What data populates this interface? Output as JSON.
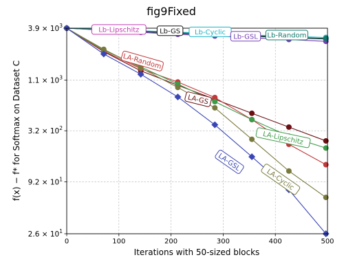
{
  "chart_data": {
    "type": "line",
    "title": "fig9Fixed",
    "xlabel": "Iterations with 50-sized blocks",
    "ylabel": "f(x) − f* for Softmax on Dataset C",
    "xlim": [
      0,
      500
    ],
    "ylim": [
      26,
      3900
    ],
    "yscale": "log",
    "grid": true,
    "xticks": [
      0,
      100,
      200,
      300,
      400,
      500
    ],
    "xtick_labels": [
      "0",
      "100",
      "200",
      "300",
      "400",
      "500"
    ],
    "yticks": [
      26,
      92,
      320,
      1100,
      3900
    ],
    "ytick_labels": [
      {
        "mant": "2.6",
        "exp": "1"
      },
      {
        "mant": "9.2",
        "exp": "1"
      },
      {
        "mant": "3.2",
        "exp": "2"
      },
      {
        "mant": "1.1",
        "exp": "3"
      },
      {
        "mant": "3.9",
        "exp": "3"
      }
    ],
    "series": [
      {
        "name": "Lb-Lipschitz",
        "color": "#c23bb0",
        "marker": "o",
        "x": [
          0,
          71,
          142,
          213,
          284,
          355,
          426,
          497
        ],
        "y": [
          3900,
          3770,
          3610,
          3470,
          3340,
          3230,
          3110,
          3010
        ]
      },
      {
        "name": "Lb-GS",
        "color": "#111111",
        "marker": "o",
        "x": [
          0,
          71,
          142,
          213,
          284,
          355,
          426,
          497
        ],
        "y": [
          3900,
          3740,
          3580,
          3440,
          3310,
          3200,
          3100,
          3000
        ]
      },
      {
        "name": "Lb-Cyclic",
        "color": "#19b2c4",
        "marker": "o",
        "x": [
          0,
          71,
          142,
          213,
          284,
          355,
          426,
          497
        ],
        "y": [
          3900,
          3780,
          3660,
          3540,
          3420,
          3300,
          3200,
          3110
        ]
      },
      {
        "name": "Lb-GSL",
        "color": "#7540b5",
        "marker": "o",
        "x": [
          0,
          71,
          142,
          213,
          284,
          355,
          426,
          497
        ],
        "y": [
          3900,
          3710,
          3520,
          3360,
          3220,
          3090,
          2960,
          2830
        ]
      },
      {
        "name": "Lb-Random",
        "color": "#127a6c",
        "marker": "o",
        "x": [
          0,
          71,
          142,
          213,
          284,
          355,
          426,
          497
        ],
        "y": [
          3900,
          3760,
          3620,
          3490,
          3360,
          3250,
          3140,
          3040
        ]
      },
      {
        "name": "LA-Random",
        "color": "#6b0f12",
        "marker": "o",
        "x": [
          0,
          71,
          142,
          213,
          284,
          355,
          426,
          497
        ],
        "y": [
          3900,
          2200,
          1380,
          970,
          690,
          490,
          350,
          250
        ]
      },
      {
        "name": "LA-GS",
        "color": "#c2393b",
        "marker": "o",
        "x": [
          0,
          71,
          142,
          213,
          284,
          355,
          426,
          497
        ],
        "y": [
          3900,
          2230,
          1450,
          1050,
          720,
          420,
          230,
          140
        ]
      },
      {
        "name": "LA-Lipschitz",
        "color": "#3e9b48",
        "marker": "o",
        "x": [
          0,
          71,
          142,
          213,
          284,
          355,
          426,
          497
        ],
        "y": [
          3900,
          2280,
          1520,
          1000,
          650,
          420,
          280,
          210
        ]
      },
      {
        "name": "LA-Cyclic",
        "color": "#79793d",
        "marker": "o",
        "x": [
          0,
          71,
          142,
          213,
          284,
          355,
          426,
          497
        ],
        "y": [
          3900,
          2330,
          1480,
          920,
          560,
          260,
          120,
          63
        ]
      },
      {
        "name": "LA-GSL",
        "color": "#3a46b5",
        "marker": "D",
        "x": [
          0,
          71,
          142,
          213,
          284,
          355,
          426,
          497
        ],
        "y": [
          3900,
          2080,
          1270,
          730,
          370,
          170,
          76,
          26
        ]
      }
    ],
    "annotations": [
      {
        "text": "Lb-Lipschitz",
        "series": "Lb-Lipschitz",
        "color": "#c23bb0",
        "x": 100,
        "y": 3780,
        "angle": 0
      },
      {
        "text": "Lb-GS",
        "series": "Lb-GS",
        "color": "#111111",
        "x": 198,
        "y": 3660,
        "angle": 0
      },
      {
        "text": "Lb-Cyclic",
        "series": "Lb-Cyclic",
        "color": "#19b2c4",
        "x": 275,
        "y": 3560,
        "angle": 0
      },
      {
        "text": "Lb-GSL",
        "series": "Lb-GSL",
        "color": "#7540b5",
        "x": 343,
        "y": 3200,
        "angle": 0
      },
      {
        "text": "Lb-Random",
        "series": "Lb-Random",
        "color": "#127a6c",
        "x": 422,
        "y": 3300,
        "angle": 0
      },
      {
        "text": "LA-Random",
        "series": "LA-Random",
        "color": "#c2393b",
        "x": 145,
        "y": 1750,
        "angle": 16
      },
      {
        "text": "LA-GS",
        "series": "LA-GS",
        "color": "#6b0f12",
        "x": 252,
        "y": 690,
        "angle": 14
      },
      {
        "text": "LA-Lipschitz",
        "series": "LA-Lipschitz",
        "color": "#3e9b48",
        "x": 415,
        "y": 270,
        "angle": 12
      },
      {
        "text": "LA-GSL",
        "series": "LA-GSL",
        "color": "#3a46b5",
        "x": 312,
        "y": 150,
        "angle": 35
      },
      {
        "text": "LA-Cyclic",
        "series": "LA-Cyclic",
        "color": "#79793d",
        "x": 410,
        "y": 98,
        "angle": 35
      }
    ]
  }
}
